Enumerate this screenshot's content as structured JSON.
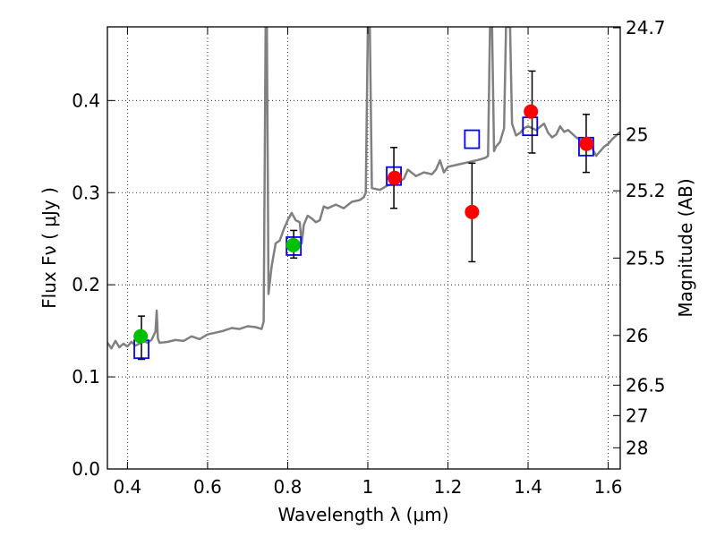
{
  "chart_data": {
    "type": "scatter",
    "xlabel": "Wavelength  λ (μm)",
    "ylabel": "Flux  Fν  ( μJy )",
    "ylabel2": "Magnitude (AB)",
    "xlim": [
      0.35,
      1.63
    ],
    "ylim": [
      0.0,
      0.48
    ],
    "grid": true,
    "x_ticks": [
      0.4,
      0.6,
      0.8,
      1.0,
      1.2,
      1.4,
      1.6
    ],
    "x_tick_labels": [
      "0.4",
      "0.6",
      "0.8",
      "1",
      "1.2",
      "1.4",
      "1.6"
    ],
    "y_ticks": [
      0.0,
      0.1,
      0.2,
      0.3,
      0.4
    ],
    "y_tick_labels": [
      "0.0",
      "0.1",
      "0.2",
      "0.3",
      "0.4"
    ],
    "right_ticks": [
      {
        "flux": 0.479,
        "label": "24.7"
      },
      {
        "flux": 0.363,
        "label": "25"
      },
      {
        "flux": 0.302,
        "label": "25.2"
      },
      {
        "flux": 0.229,
        "label": "25.5"
      },
      {
        "flux": 0.145,
        "label": "26"
      },
      {
        "flux": 0.091,
        "label": "26.5"
      },
      {
        "flux": 0.058,
        "label": "27"
      },
      {
        "flux": 0.023,
        "label": "28"
      }
    ],
    "series": [
      {
        "kind": "line",
        "color": "#808080",
        "points": [
          [
            0.35,
            0.137
          ],
          [
            0.36,
            0.131
          ],
          [
            0.37,
            0.139
          ],
          [
            0.38,
            0.132
          ],
          [
            0.39,
            0.136
          ],
          [
            0.4,
            0.133
          ],
          [
            0.41,
            0.138
          ],
          [
            0.42,
            0.134
          ],
          [
            0.43,
            0.136
          ],
          [
            0.44,
            0.139
          ],
          [
            0.45,
            0.137
          ],
          [
            0.46,
            0.14
          ],
          [
            0.47,
            0.149
          ],
          [
            0.473,
            0.172
          ],
          [
            0.476,
            0.142
          ],
          [
            0.48,
            0.137
          ],
          [
            0.5,
            0.138
          ],
          [
            0.52,
            0.14
          ],
          [
            0.54,
            0.139
          ],
          [
            0.56,
            0.144
          ],
          [
            0.58,
            0.141
          ],
          [
            0.6,
            0.146
          ],
          [
            0.62,
            0.148
          ],
          [
            0.64,
            0.15
          ],
          [
            0.66,
            0.153
          ],
          [
            0.68,
            0.152
          ],
          [
            0.7,
            0.155
          ],
          [
            0.72,
            0.154
          ],
          [
            0.735,
            0.152
          ],
          [
            0.74,
            0.16
          ],
          [
            0.745,
            0.48
          ],
          [
            0.748,
            0.48
          ],
          [
            0.752,
            0.19
          ],
          [
            0.76,
            0.22
          ],
          [
            0.77,
            0.245
          ],
          [
            0.78,
            0.248
          ],
          [
            0.79,
            0.26
          ],
          [
            0.8,
            0.27
          ],
          [
            0.81,
            0.278
          ],
          [
            0.82,
            0.27
          ],
          [
            0.83,
            0.268
          ],
          [
            0.835,
            0.245
          ],
          [
            0.84,
            0.265
          ],
          [
            0.85,
            0.275
          ],
          [
            0.86,
            0.272
          ],
          [
            0.87,
            0.268
          ],
          [
            0.88,
            0.27
          ],
          [
            0.89,
            0.285
          ],
          [
            0.9,
            0.283
          ],
          [
            0.92,
            0.287
          ],
          [
            0.94,
            0.283
          ],
          [
            0.96,
            0.29
          ],
          [
            0.98,
            0.292
          ],
          [
            0.99,
            0.295
          ],
          [
            0.995,
            0.3
          ],
          [
            1.0,
            0.48
          ],
          [
            1.005,
            0.48
          ],
          [
            1.01,
            0.305
          ],
          [
            1.03,
            0.303
          ],
          [
            1.05,
            0.308
          ],
          [
            1.07,
            0.31
          ],
          [
            1.09,
            0.315
          ],
          [
            1.1,
            0.325
          ],
          [
            1.12,
            0.318
          ],
          [
            1.14,
            0.322
          ],
          [
            1.16,
            0.32
          ],
          [
            1.17,
            0.325
          ],
          [
            1.18,
            0.335
          ],
          [
            1.19,
            0.322
          ],
          [
            1.2,
            0.328
          ],
          [
            1.22,
            0.33
          ],
          [
            1.24,
            0.332
          ],
          [
            1.26,
            0.334
          ],
          [
            1.28,
            0.336
          ],
          [
            1.295,
            0.338
          ],
          [
            1.3,
            0.34
          ],
          [
            1.305,
            0.48
          ],
          [
            1.31,
            0.48
          ],
          [
            1.315,
            0.345
          ],
          [
            1.32,
            0.35
          ],
          [
            1.33,
            0.355
          ],
          [
            1.34,
            0.37
          ],
          [
            1.345,
            0.48
          ],
          [
            1.355,
            0.48
          ],
          [
            1.36,
            0.375
          ],
          [
            1.37,
            0.362
          ],
          [
            1.38,
            0.365
          ],
          [
            1.39,
            0.37
          ],
          [
            1.4,
            0.372
          ],
          [
            1.42,
            0.368
          ],
          [
            1.44,
            0.375
          ],
          [
            1.45,
            0.365
          ],
          [
            1.46,
            0.36
          ],
          [
            1.47,
            0.363
          ],
          [
            1.48,
            0.372
          ],
          [
            1.49,
            0.366
          ],
          [
            1.5,
            0.368
          ],
          [
            1.52,
            0.36
          ],
          [
            1.54,
            0.355
          ],
          [
            1.56,
            0.348
          ],
          [
            1.57,
            0.34
          ],
          [
            1.58,
            0.345
          ],
          [
            1.59,
            0.35
          ],
          [
            1.6,
            0.353
          ],
          [
            1.61,
            0.358
          ],
          [
            1.62,
            0.362
          ],
          [
            1.63,
            0.366
          ]
        ]
      },
      {
        "kind": "open-square",
        "color": "#0000ff",
        "points": [
          [
            0.435,
            0.13
          ],
          [
            0.815,
            0.242
          ],
          [
            1.065,
            0.318
          ],
          [
            1.26,
            0.358
          ],
          [
            1.405,
            0.372
          ],
          [
            1.545,
            0.35
          ]
        ]
      },
      {
        "kind": "errorbar",
        "color": "#000000",
        "bars": [
          {
            "x": 0.435,
            "low": 0.119,
            "high": 0.166
          },
          {
            "x": 0.815,
            "low": 0.229,
            "high": 0.259
          },
          {
            "x": 1.065,
            "low": 0.283,
            "high": 0.349
          },
          {
            "x": 1.26,
            "low": 0.225,
            "high": 0.332
          },
          {
            "x": 1.41,
            "low": 0.343,
            "high": 0.432
          },
          {
            "x": 1.545,
            "low": 0.322,
            "high": 0.385
          }
        ]
      },
      {
        "kind": "filled-circle",
        "color": "#00c000",
        "points": [
          [
            0.433,
            0.144
          ],
          [
            0.814,
            0.243
          ]
        ]
      },
      {
        "kind": "filled-circle",
        "color": "#ff0000",
        "points": [
          [
            1.067,
            0.316
          ],
          [
            1.26,
            0.279
          ],
          [
            1.407,
            0.388
          ],
          [
            1.546,
            0.353
          ]
        ]
      }
    ]
  }
}
